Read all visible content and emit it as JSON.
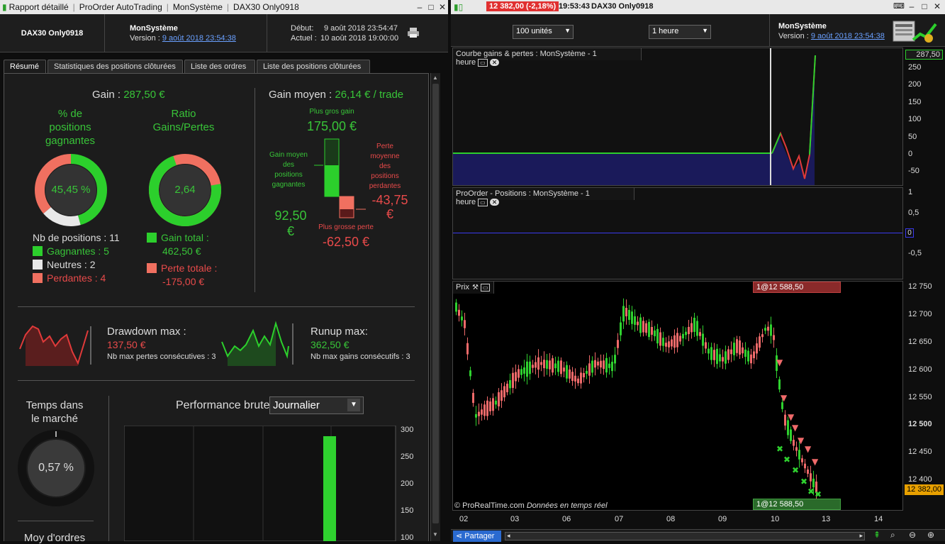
{
  "left_window": {
    "title_tabs": [
      "Rapport détaillé",
      "ProOrder AutoTrading",
      "MonSystème",
      "DAX30 Only0918"
    ],
    "header": {
      "instrument": "DAX30 Only0918",
      "system": "MonSystème",
      "version_label": "Version : ",
      "version_link": "9 août 2018 23:54:38",
      "debut_label": "Début:",
      "debut_value": "9 août 2018 23:54:47",
      "actuel_label": "Actuel :",
      "actuel_value": "10 août 2018 19:00:00"
    },
    "tabs": [
      "Résumé",
      "Statistiques des positions clôturées",
      "Liste des ordres",
      "Liste des positions clôturées"
    ],
    "gain_label": "Gain :",
    "gain_value": "287,50 €",
    "pct_title": [
      "% de",
      "positions",
      "gagnantes"
    ],
    "pct_value": "45,45 %",
    "ratio_title": [
      "Ratio",
      "Gains/Pertes"
    ],
    "ratio_value": "2,64",
    "nb_positions": "Nb de positions : 11",
    "gagnantes": "Gagnantes : 5",
    "neutres": "Neutres : 2",
    "perdantes": "Perdantes : 4",
    "gain_total_label": "Gain total :",
    "gain_total_value": "462,50 €",
    "perte_totale_label": "Perte totale :",
    "perte_totale_value": "-175,00 €",
    "gain_moyen_label": "Gain moyen :",
    "gain_moyen_value": "26,14 € / trade",
    "plus_gros_gain_label": "Plus gros gain",
    "plus_gros_gain_value": "175,00 €",
    "gain_moyen_pos": [
      "Gain moyen",
      "des",
      "positions",
      "gagnantes"
    ],
    "gain_moyen_pos_value": "92,50 €",
    "perte_moyenne": [
      "Perte",
      "moyenne",
      "des",
      "positions",
      "perdantes"
    ],
    "perte_moyenne_value": "-43,75 €",
    "plus_grosse_perte_label": "Plus grosse perte",
    "plus_grosse_perte_value": "-62,50 €",
    "drawdown_label": "Drawdown max :",
    "drawdown_value": "137,50 €",
    "drawdown_sub": "Nb max pertes consécutives : 3",
    "runup_label": "Runup max:",
    "runup_value": "362,50 €",
    "runup_sub": "Nb max gains consécutifs : 3",
    "temps_label": [
      "Temps dans",
      "le marché"
    ],
    "temps_value": "0,57 %",
    "moy_ordres_label": "Moy d'ordres",
    "perf_label": "Performance brute",
    "perf_select": "Journalier",
    "perf_yticks": [
      "300",
      "250",
      "200",
      "150",
      "100"
    ],
    "perf_bar_value": 290
  },
  "right_window": {
    "price_badge": "12 382,00 (-2,18%)",
    "time": "19:53:43",
    "instrument": "DAX30 Only0918",
    "units_select": "100 unités",
    "period_select": "1 heure",
    "system": "MonSystème",
    "version_label": "Version : ",
    "version_link": "9 août 2018 23:54:38",
    "panel1_title": "Courbe gains & pertes : MonSystème - 1 heure",
    "panel1_yticks": [
      "250",
      "200",
      "150",
      "100",
      "50",
      "0",
      "-50"
    ],
    "panel1_last": "287,50",
    "panel2_title": "ProOrder - Positions : MonSystème - 1 heure",
    "panel2_yticks": [
      "1",
      "0,5",
      "-0,5"
    ],
    "panel2_zero": "0",
    "price_title": "Prix",
    "price_yticks": [
      "12 750",
      "12 700",
      "12 650",
      "12 600",
      "12 550",
      "12 500",
      "12 450",
      "12 400"
    ],
    "price_last": "12 382,00",
    "order_tag": "1@12 588,50",
    "watermark": "© ProRealTime.com",
    "watermark2": "Données en temps réel",
    "x_ticks": [
      "02",
      "03",
      "06",
      "07",
      "08",
      "09",
      "10",
      "13",
      "14"
    ],
    "share_btn": "Partager",
    "colors": {
      "up": "#2fd12f",
      "down": "#f06a6a",
      "accent": "#3a8df0"
    }
  }
}
